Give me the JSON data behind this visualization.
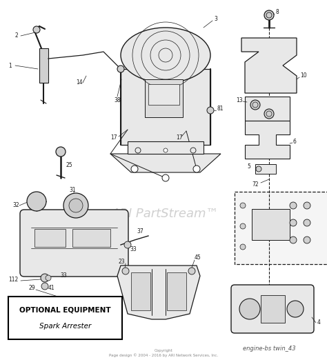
{
  "bg_color": "#ffffff",
  "fig_width": 4.74,
  "fig_height": 5.22,
  "dpi": 100,
  "watermark_text": "ARI PartStream™",
  "watermark_color": "#c8c8c8",
  "watermark_alpha": 0.85,
  "footer_text1": "engine-bs twin_43",
  "copyright_text": "Copyright\nPage design © 2004 - 2016 by ARI Network Services, Inc.",
  "box_text_line1": "OPTIONAL EQUIPMENT",
  "box_text_line2": "Spark Arrester",
  "label_color": "#1a1a1a",
  "line_color": "#1a1a1a",
  "part_color": "#1a1a1a",
  "lfs": 5.5
}
